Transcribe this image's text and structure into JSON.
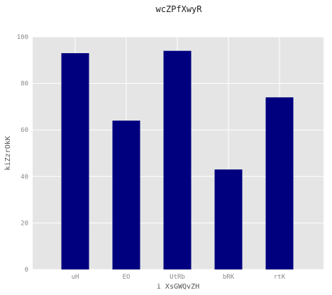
{
  "chart_data": {
    "type": "bar",
    "title": "wcZPfXwyR",
    "xlabel": "i XsGWQvZH",
    "ylabel": "kiZzrOkK",
    "categories": [
      "uH",
      "EO",
      "UtRb",
      "bRK",
      "rtK"
    ],
    "values": [
      93,
      64,
      94,
      43,
      74
    ],
    "ylim": [
      0,
      100
    ],
    "yticks": [
      0,
      20,
      40,
      60,
      80,
      100
    ],
    "grid": true,
    "colors": {
      "bar": "#00007f",
      "plot_background": "#e5e5e5",
      "grid": "#ffffff"
    }
  }
}
